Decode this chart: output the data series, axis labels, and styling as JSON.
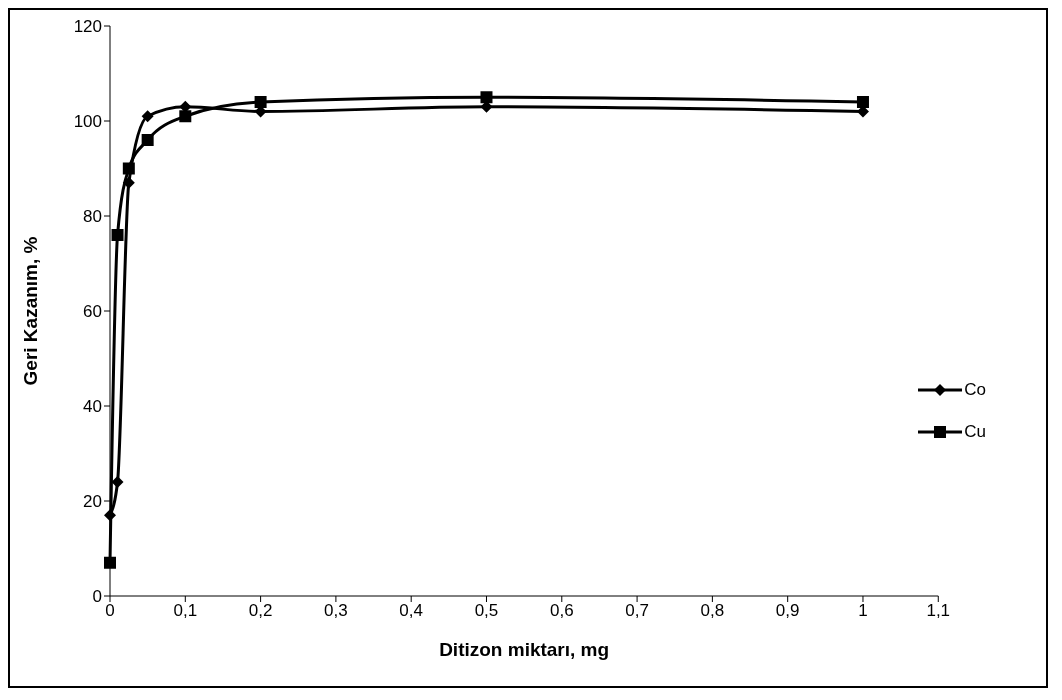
{
  "chart_data": {
    "type": "line",
    "xlabel": "Ditizon miktarı, mg",
    "ylabel": "Geri Kazanım, %",
    "x": [
      0,
      0.01,
      0.025,
      0.05,
      0.1,
      0.2,
      0.5,
      1
    ],
    "series": [
      {
        "name": "Co",
        "color": "#000000",
        "marker": "diamond",
        "values": [
          17,
          24,
          87,
          101,
          103,
          102,
          103,
          102
        ]
      },
      {
        "name": "Cu",
        "color": "#000000",
        "marker": "square",
        "values": [
          7,
          76,
          90,
          96,
          101,
          104,
          105,
          104
        ]
      }
    ],
    "xlim": [
      0,
      1.1
    ],
    "xticks": [
      0,
      {
        "value": 0.1,
        "label": "0,1"
      },
      {
        "value": 0.2,
        "label": "0,2"
      },
      {
        "value": 0.3,
        "label": "0,3"
      },
      {
        "value": 0.4,
        "label": "0,4"
      },
      {
        "value": 0.5,
        "label": "0,5"
      },
      {
        "value": 0.6,
        "label": "0,6"
      },
      {
        "value": 0.7,
        "label": "0,7"
      },
      {
        "value": 0.8,
        "label": "0,8"
      },
      {
        "value": 0.9,
        "label": "0,9"
      },
      1,
      {
        "value": 1.1,
        "label": "1,1"
      }
    ],
    "ylim": [
      0,
      120
    ],
    "yticks": [
      0,
      20,
      40,
      60,
      80,
      100,
      120
    ],
    "grid": false,
    "legend": "right",
    "line_style": "solid"
  }
}
